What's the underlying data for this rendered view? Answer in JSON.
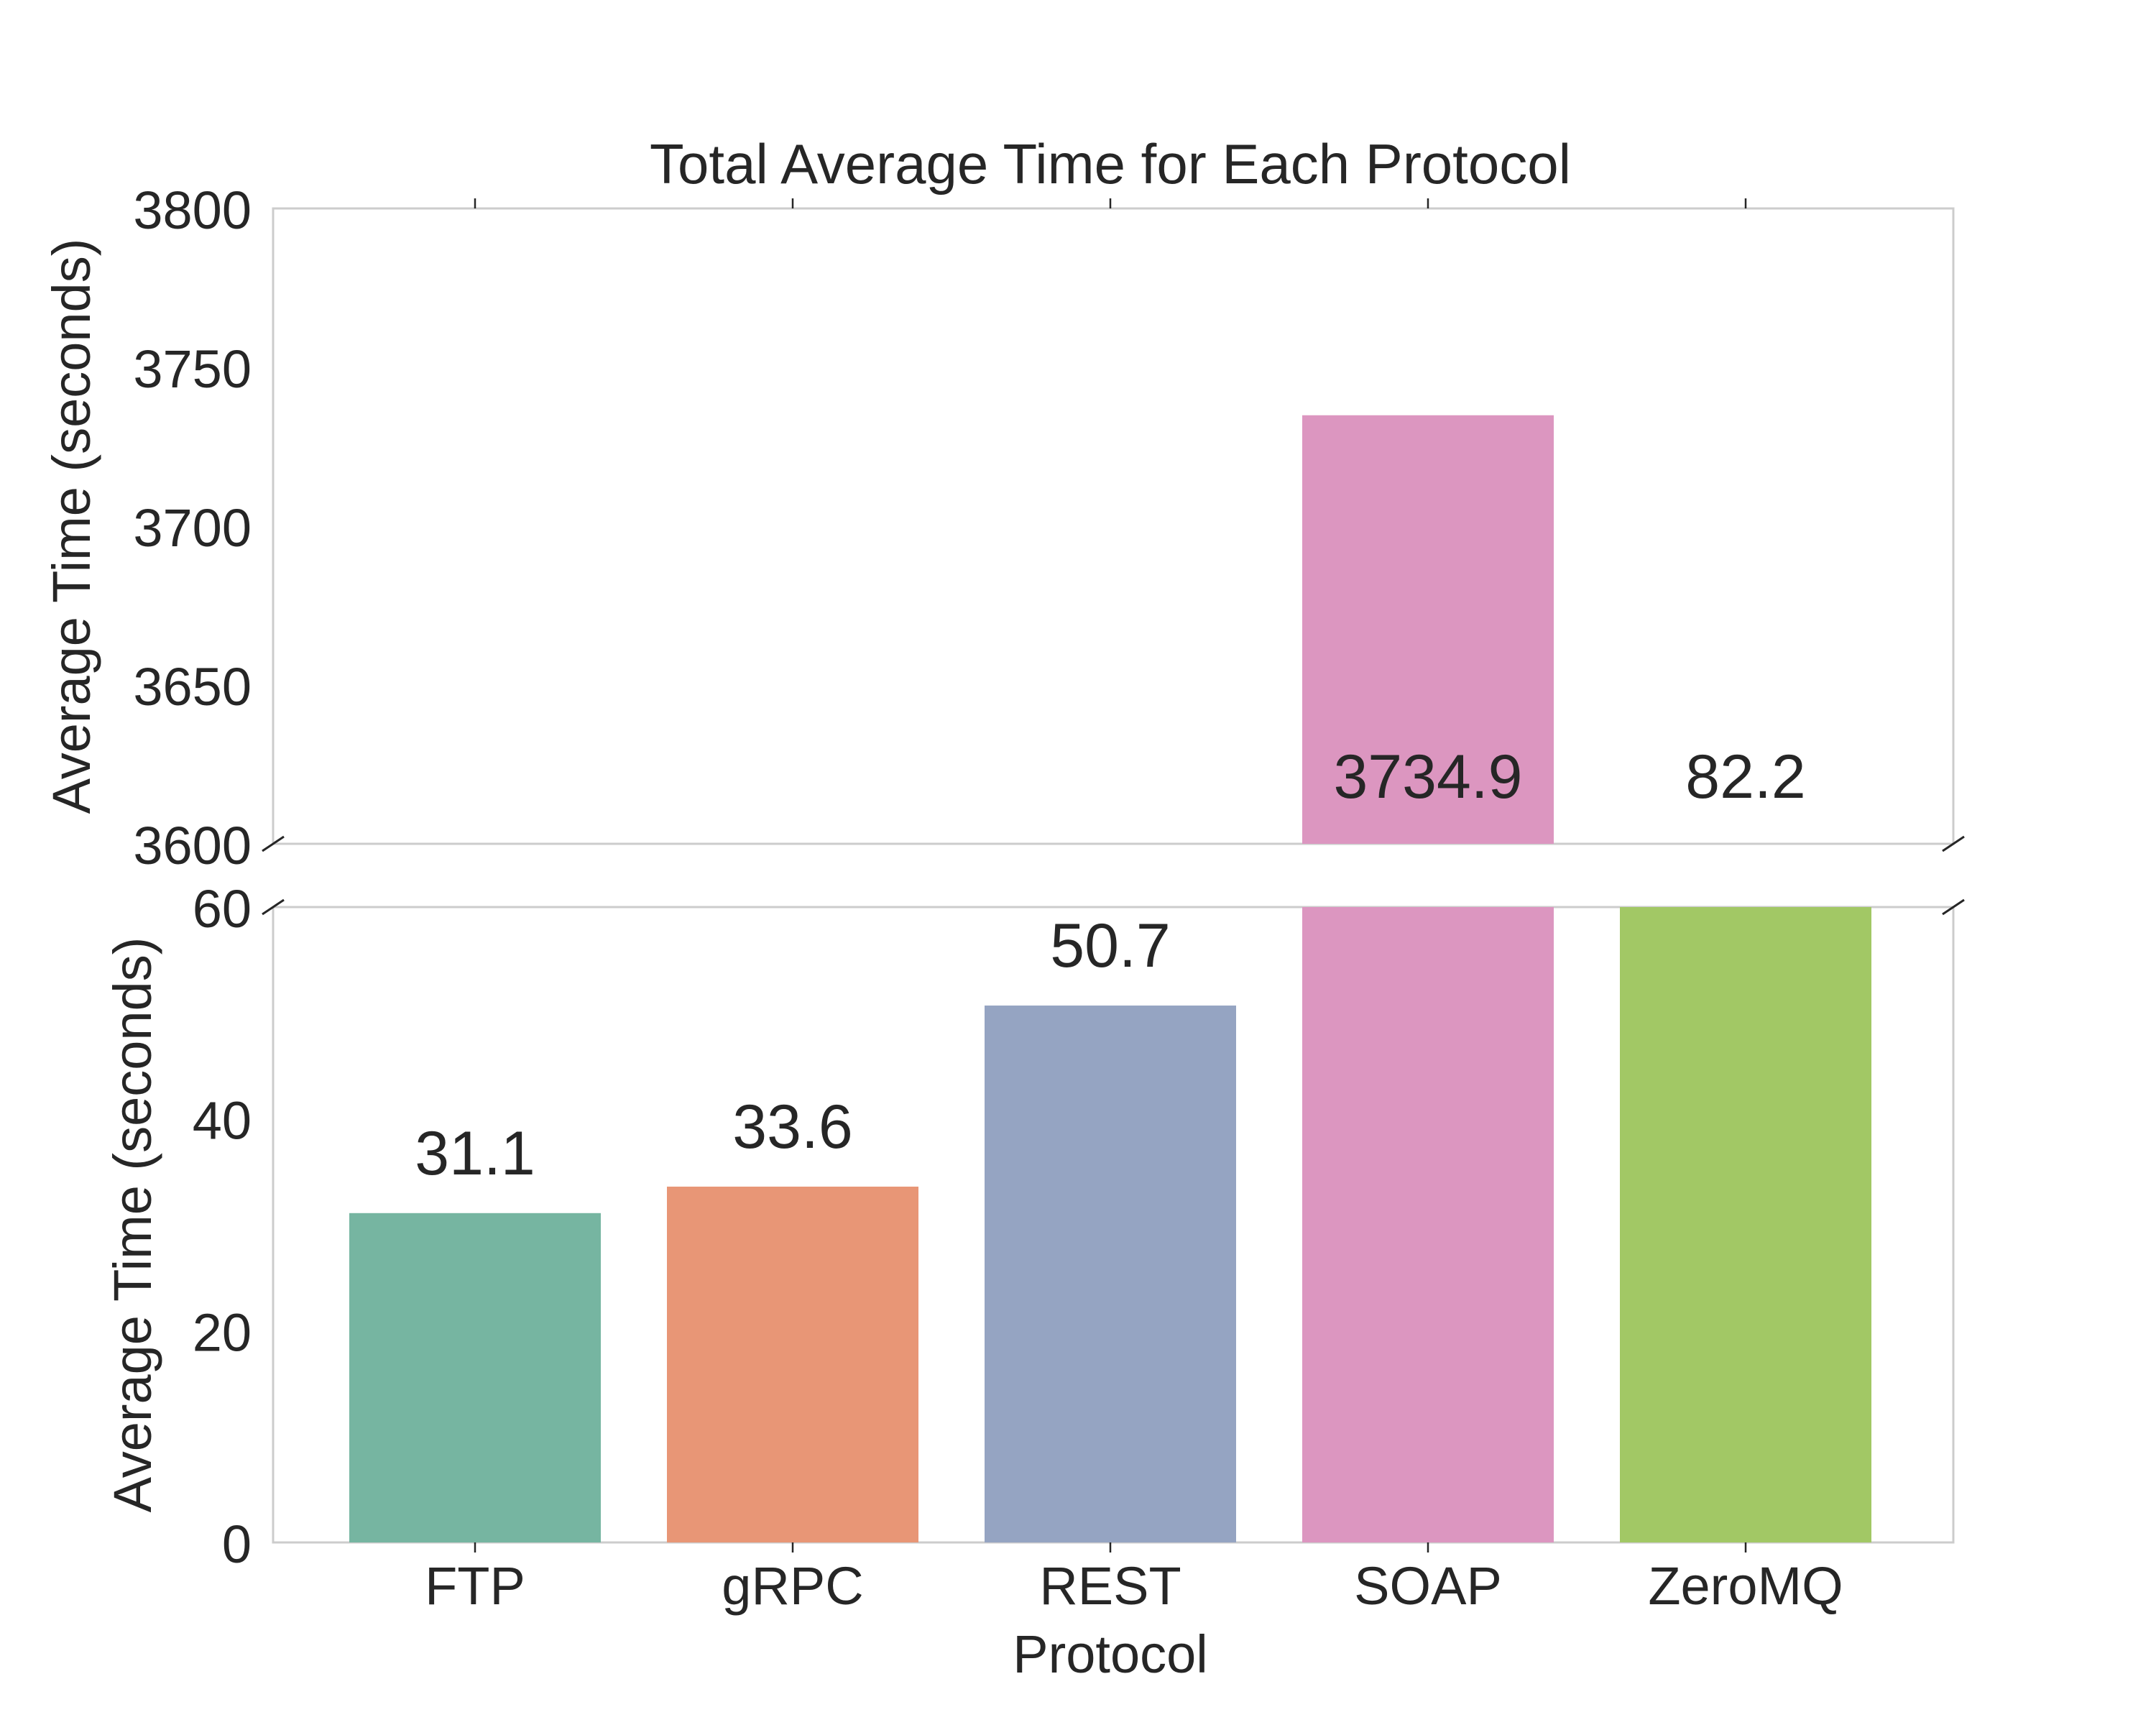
{
  "chart_data": {
    "type": "bar",
    "broken_y_axis": true,
    "title": "Total Average Time for Each Protocol",
    "xlabel": "Protocol",
    "ylabel": "Average Time (seconds)",
    "categories": [
      "FTP",
      "gRPC",
      "REST",
      "SOAP",
      "ZeroMQ"
    ],
    "values": [
      31.1,
      33.6,
      50.7,
      3734.9,
      82.2
    ],
    "value_labels": [
      "31.1",
      "33.6",
      "50.7",
      "3734.9",
      "82.2"
    ],
    "colors": [
      "#76b5a1",
      "#e89676",
      "#95a4c2",
      "#dc96c0",
      "#a2c865"
    ],
    "upper_panel": {
      "ylim": [
        3600,
        3800
      ],
      "yticks": [
        3600,
        3650,
        3700,
        3750,
        3800
      ]
    },
    "lower_panel": {
      "ylim": [
        0,
        60
      ],
      "yticks": [
        0,
        20,
        40,
        60
      ]
    },
    "grid": false,
    "legend": "none"
  }
}
